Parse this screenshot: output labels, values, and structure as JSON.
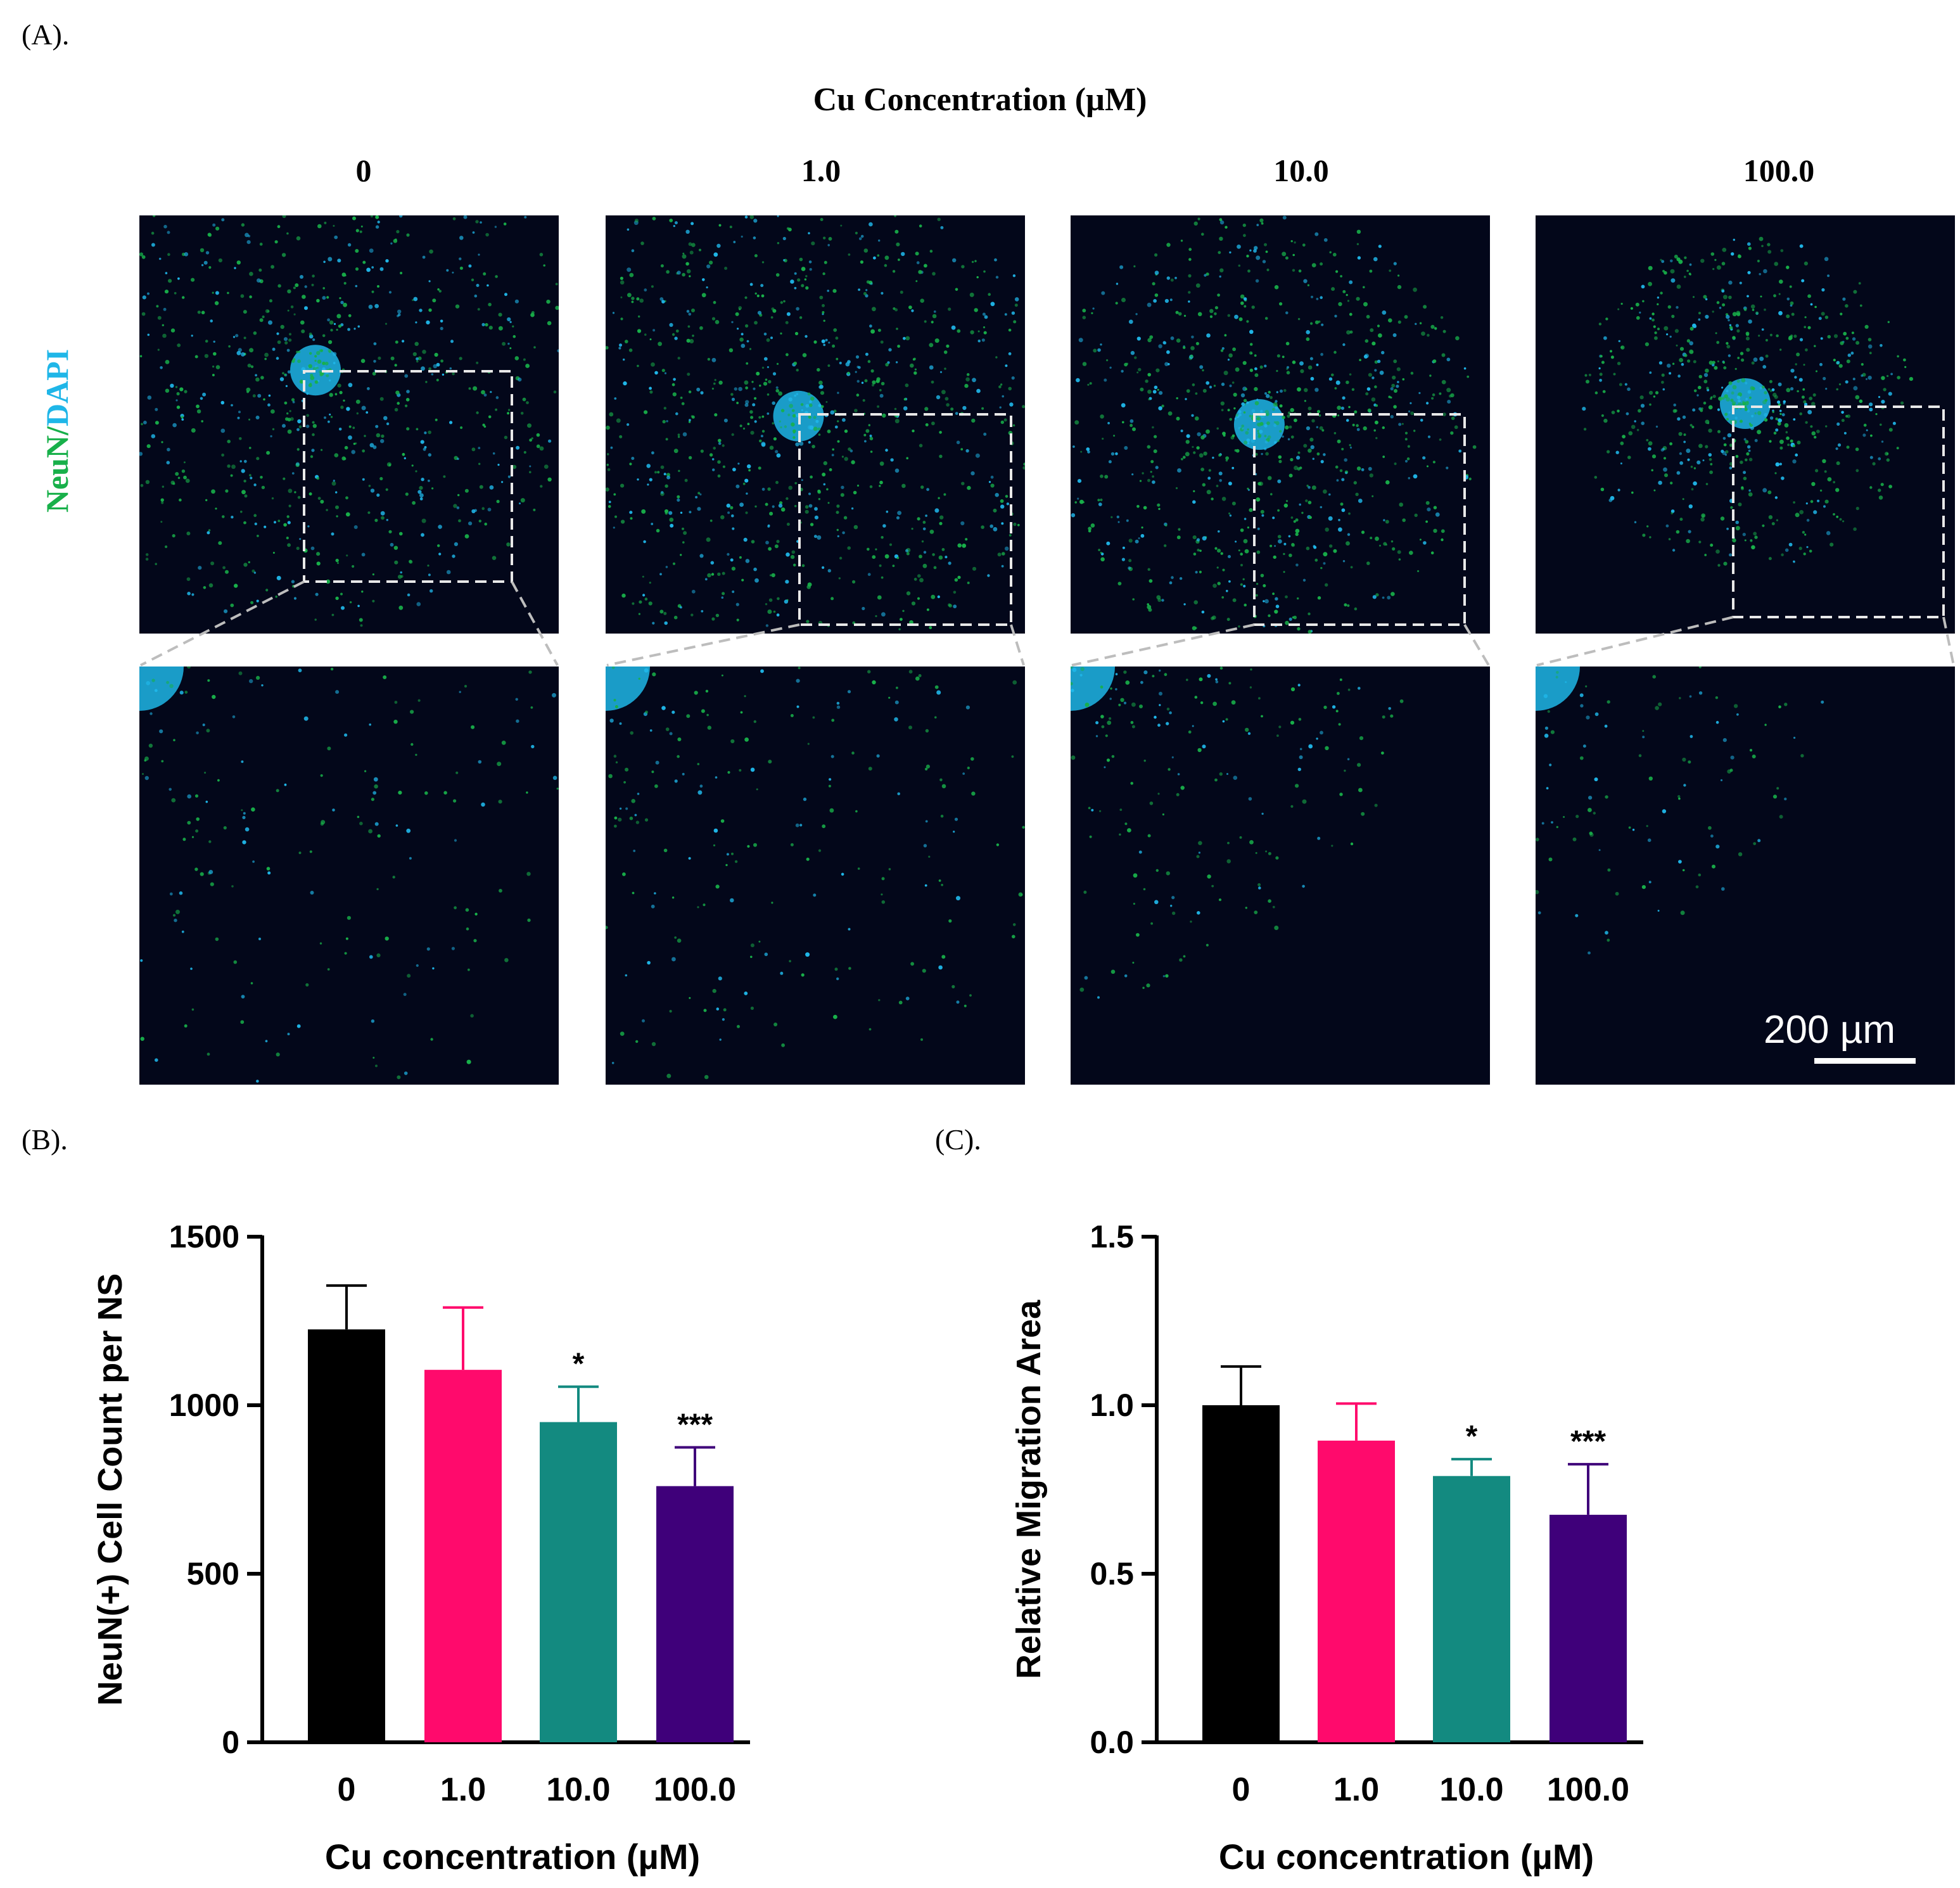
{
  "panel_a": {
    "label": "(A).",
    "title": "Cu Concentration (µM)",
    "columns": [
      "0",
      "1.0",
      "10.0",
      "100.0"
    ],
    "stain_label": {
      "part1": "NeuN",
      "sep": "/",
      "part2": "DAPI"
    },
    "scale_bar_text": "200 µm",
    "colors": {
      "neun": "#18b04a",
      "dapi": "#1fb6e8",
      "background": "#03071a"
    }
  },
  "panel_b_label": "(B).",
  "panel_c_label": "(C).",
  "chart_data": [
    {
      "type": "bar",
      "panel": "B",
      "categories": [
        "0",
        "1.0",
        "10.0",
        "100.0"
      ],
      "values": [
        1225,
        1105,
        950,
        760
      ],
      "errors": [
        130,
        185,
        105,
        115
      ],
      "significance": [
        "",
        "",
        "*",
        "***"
      ],
      "colors": [
        "#000000",
        "#ff0a6c",
        "#138a80",
        "#3f007a"
      ],
      "xlabel": "Cu concentration (µM)",
      "ylabel": "NeuN(+) Cell Count per NS",
      "ylim": [
        0,
        1500
      ],
      "yticks": [
        0,
        500,
        1000,
        1500
      ],
      "ytick_labels": [
        "0",
        "500",
        "1000",
        "1500"
      ]
    },
    {
      "type": "bar",
      "panel": "C",
      "categories": [
        "0",
        "1.0",
        "10.0",
        "100.0"
      ],
      "values": [
        1.0,
        0.895,
        0.79,
        0.675
      ],
      "errors": [
        0.115,
        0.11,
        0.05,
        0.15
      ],
      "significance": [
        "",
        "",
        "*",
        "***"
      ],
      "colors": [
        "#000000",
        "#ff0a6c",
        "#138a80",
        "#3f007a"
      ],
      "xlabel": "Cu concentration (µM)",
      "ylabel": "Relative Migration Area",
      "ylim": [
        0,
        1.5
      ],
      "yticks": [
        0,
        0.5,
        1.0,
        1.5
      ],
      "ytick_labels": [
        "0.0",
        "0.5",
        "1.0",
        "1.5"
      ]
    }
  ]
}
